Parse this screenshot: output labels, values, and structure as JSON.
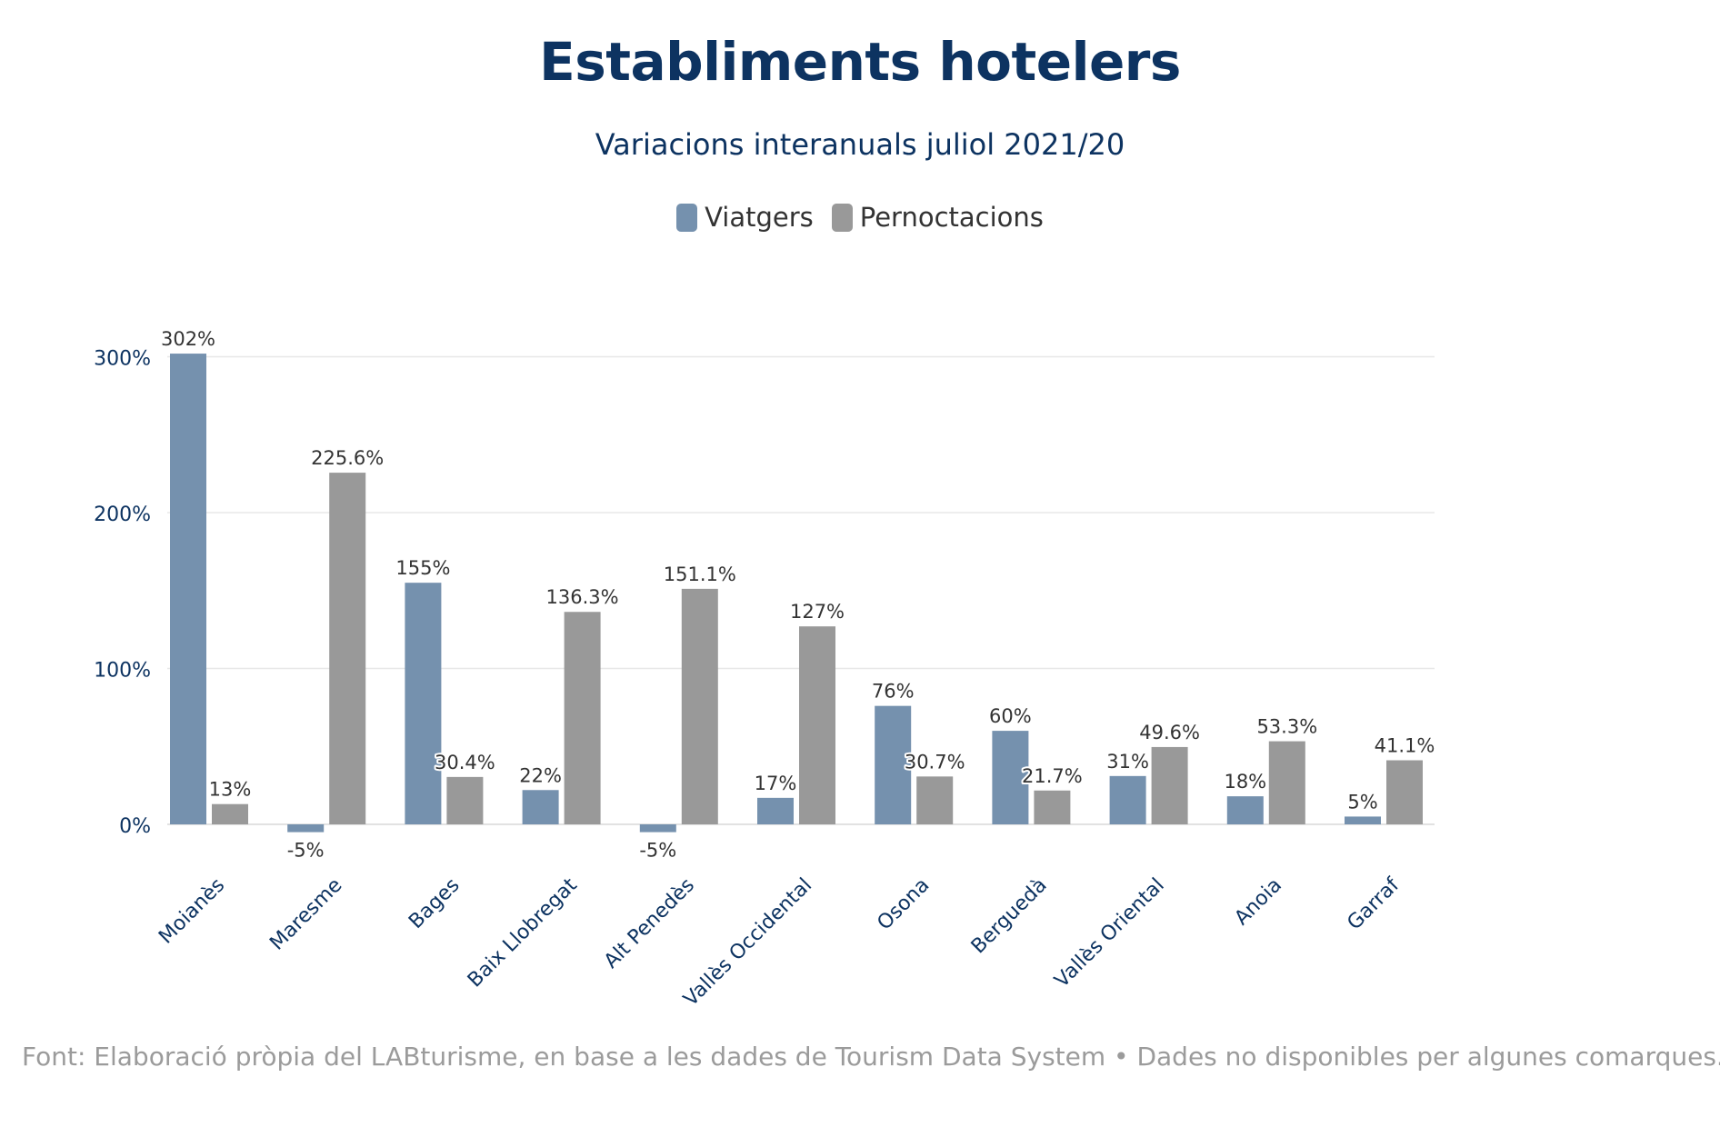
{
  "header": {
    "title": "Establiments hotelers",
    "subtitle": "Variacions interanuals juliol 2021/20"
  },
  "legend": [
    {
      "label": "Viatgers",
      "color": "#7591ae"
    },
    {
      "label": "Pernoctacions",
      "color": "#999999"
    }
  ],
  "chart_data": {
    "type": "bar",
    "title": "Establiments hotelers",
    "subtitle": "Variacions interanuals juliol 2021/20",
    "xlabel": "",
    "ylabel": "",
    "categories": [
      "Moianès",
      "Maresme",
      "Bages",
      "Baix Llobregat",
      "Alt Penedès",
      "Vallès Occidental",
      "Osona",
      "Berguedà",
      "Vallès Oriental",
      "Anoia",
      "Garraf"
    ],
    "series": [
      {
        "name": "Viatgers",
        "color": "#7591ae",
        "values": [
          302,
          -5,
          155,
          22,
          -5,
          17,
          76,
          60,
          31,
          18,
          5
        ],
        "labels": [
          "302%",
          "-5%",
          "155%",
          "22%",
          "-5%",
          "17%",
          "76%",
          "60%",
          "31%",
          "18%",
          "5%"
        ]
      },
      {
        "name": "Pernoctacions",
        "color": "#999999",
        "values": [
          13,
          225.6,
          30.4,
          136.3,
          151.1,
          127,
          30.7,
          21.7,
          49.6,
          53.3,
          41.1
        ],
        "labels": [
          "13%",
          "225.6%",
          "30.4%",
          "136.3%",
          "151.1%",
          "127%",
          "30.7%",
          "21.7%",
          "49.6%",
          "53.3%",
          "41.1%"
        ]
      }
    ],
    "yticks": [
      0,
      100,
      200,
      300
    ],
    "ytick_labels": [
      "0%",
      "100%",
      "200%",
      "300%"
    ],
    "ylim": [
      -5,
      302
    ],
    "grid": true,
    "legend_position": "top-center"
  },
  "footer": {
    "source": "Font: Elaboració pròpia del LABturisme, en base a les dades de Tourism Data System • Dades no disponibles per algunes comarques."
  }
}
